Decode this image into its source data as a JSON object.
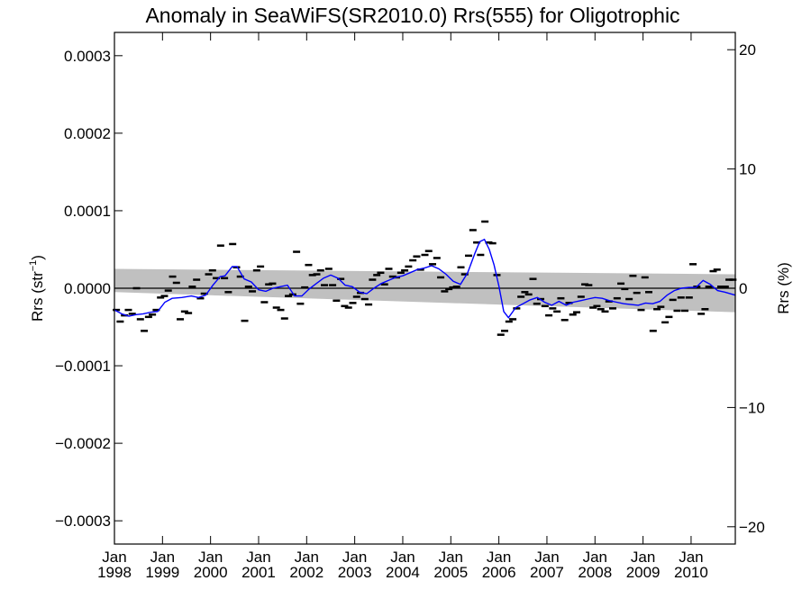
{
  "chart_data": {
    "type": "scatter",
    "title": "Anomaly in SeaWiFS(SR2010.0) Rrs(555) for Oligotrophic",
    "ylabel_base": "Rrs (str",
    "ylabel_sup": "−1",
    "ylabel_end": ")",
    "ylabel_right": "Rrs (%)",
    "xlim": [
      1998.0,
      2010.92
    ],
    "ylim": [
      -0.00033,
      0.00033
    ],
    "ylim_right": [
      -21.45,
      21.45
    ],
    "y_ticks": [
      0.0003,
      0.0002,
      0.0001,
      0.0,
      -0.0001,
      -0.0002,
      -0.0003
    ],
    "y_tick_labels": [
      "0.0003",
      "0.0002",
      "0.0001",
      "0.0000",
      "−0.0001",
      "−0.0002",
      "−0.0003"
    ],
    "y_right_ticks": [
      20,
      10,
      0,
      -10,
      -20
    ],
    "y_right_tick_labels": [
      "20",
      "10",
      "0",
      "−10",
      "−20"
    ],
    "x_ticks": [
      {
        "x": 1998,
        "month": "Jan",
        "year": "1998"
      },
      {
        "x": 1999,
        "month": "Jan",
        "year": "1999"
      },
      {
        "x": 2000,
        "month": "Jan",
        "year": "2000"
      },
      {
        "x": 2001,
        "month": "Jan",
        "year": "2001"
      },
      {
        "x": 2002,
        "month": "Jan",
        "year": "2002"
      },
      {
        "x": 2003,
        "month": "Jan",
        "year": "2003"
      },
      {
        "x": 2004,
        "month": "Jan",
        "year": "2004"
      },
      {
        "x": 2005,
        "month": "Jan",
        "year": "2005"
      },
      {
        "x": 2006,
        "month": "Jan",
        "year": "2006"
      },
      {
        "x": 2007,
        "month": "Jan",
        "year": "2007"
      },
      {
        "x": 2008,
        "month": "Jan",
        "year": "2008"
      },
      {
        "x": 2009,
        "month": "Jan",
        "year": "2009"
      },
      {
        "x": 2010,
        "month": "Jan",
        "year": "2010"
      }
    ],
    "zero_line": 0.0,
    "confidence_band": {
      "x": [
        1998.0,
        2010.92
      ],
      "upper": [
        2.5e-05,
        1.8e-05
      ],
      "lower": [
        -5e-06,
        -3.1e-05
      ],
      "color": "#c0c0c0"
    },
    "monthly_points": {
      "color": "#000000",
      "x": [
        1998.04,
        1998.12,
        1998.21,
        1998.29,
        1998.37,
        1998.46,
        1998.54,
        1998.62,
        1998.71,
        1998.79,
        1998.87,
        1998.96,
        1999.04,
        1999.12,
        1999.21,
        1999.29,
        1999.37,
        1999.46,
        1999.54,
        1999.62,
        1999.71,
        1999.79,
        1999.87,
        1999.96,
        2000.04,
        2000.12,
        2000.21,
        2000.29,
        2000.37,
        2000.46,
        2000.54,
        2000.62,
        2000.71,
        2000.79,
        2000.87,
        2000.96,
        2001.04,
        2001.12,
        2001.21,
        2001.29,
        2001.37,
        2001.46,
        2001.54,
        2001.62,
        2001.71,
        2001.79,
        2001.87,
        2001.96,
        2002.04,
        2002.12,
        2002.21,
        2002.29,
        2002.37,
        2002.46,
        2002.54,
        2002.62,
        2002.71,
        2002.79,
        2002.87,
        2002.96,
        2003.04,
        2003.12,
        2003.21,
        2003.29,
        2003.37,
        2003.46,
        2003.54,
        2003.62,
        2003.71,
        2003.79,
        2003.87,
        2003.96,
        2004.04,
        2004.12,
        2004.21,
        2004.29,
        2004.37,
        2004.46,
        2004.54,
        2004.62,
        2004.71,
        2004.79,
        2004.87,
        2004.96,
        2005.04,
        2005.12,
        2005.21,
        2005.29,
        2005.37,
        2005.46,
        2005.54,
        2005.62,
        2005.71,
        2005.79,
        2005.87,
        2005.96,
        2006.04,
        2006.12,
        2006.21,
        2006.29,
        2006.37,
        2006.46,
        2006.54,
        2006.62,
        2006.71,
        2006.79,
        2006.87,
        2006.96,
        2007.04,
        2007.12,
        2007.21,
        2007.29,
        2007.37,
        2007.46,
        2007.54,
        2007.62,
        2007.71,
        2007.79,
        2007.87,
        2007.96,
        2008.04,
        2008.12,
        2008.21,
        2008.29,
        2008.37,
        2008.46,
        2008.54,
        2008.62,
        2008.71,
        2008.79,
        2008.87,
        2008.96,
        2009.04,
        2009.12,
        2009.21,
        2009.29,
        2009.37,
        2009.46,
        2009.54,
        2009.62,
        2009.71,
        2009.79,
        2009.87,
        2009.96,
        2010.04,
        2010.12,
        2010.21,
        2010.29,
        2010.37,
        2010.46,
        2010.54,
        2010.62,
        2010.71,
        2010.79,
        2010.87
      ],
      "y": [
        -2.8e-05,
        -4.3e-05,
        -3.5e-05,
        -2.8e-05,
        -3.3e-05,
        0.0,
        -4e-05,
        -5.5e-05,
        -3.7e-05,
        -3.4e-05,
        -2.8e-05,
        -1.2e-05,
        -1e-05,
        -3e-06,
        1.5e-05,
        7e-06,
        -4e-05,
        -3e-05,
        -3.2e-05,
        2e-06,
        1.1e-05,
        -1.3e-05,
        -7e-06,
        1.8e-05,
        2.3e-05,
        1.3e-05,
        5.5e-05,
        1.3e-05,
        -5e-06,
        5.7e-05,
        2.7e-05,
        1.5e-05,
        -4.2e-05,
        2e-06,
        -4e-06,
        2.3e-05,
        2.8e-05,
        -1.8e-05,
        5e-06,
        6e-06,
        -2.5e-05,
        -2.8e-05,
        -3.9e-05,
        -1e-05,
        -8e-06,
        4.7e-05,
        -2e-05,
        1e-06,
        3e-05,
        1.7e-05,
        1.8e-05,
        2.3e-05,
        4e-06,
        2.5e-05,
        4e-06,
        -1.6e-05,
        1.2e-05,
        -2.3e-05,
        -2.5e-05,
        -1.9e-05,
        -1.1e-05,
        -6e-06,
        -1.4e-05,
        -2.1e-05,
        1.1e-05,
        1.7e-05,
        2e-05,
        5e-06,
        2.5e-05,
        1.5e-05,
        1.4e-05,
        2e-05,
        2.3e-05,
        2.8e-05,
        3.6e-05,
        4.1e-05,
        2.4e-05,
        4.3e-05,
        4.8e-05,
        3.1e-05,
        3.9e-05,
        1.4e-05,
        -4e-06,
        -1e-06,
        1e-06,
        2e-06,
        2.7e-05,
        1.8e-05,
        4.2e-05,
        7.5e-05,
        5.9e-05,
        4.3e-05,
        8.6e-05,
        5.9e-05,
        5.8e-05,
        1.7e-05,
        -6e-05,
        -5.5e-05,
        -4.3e-05,
        -4e-05,
        -2.6e-05,
        -1.1e-05,
        -5e-06,
        -8e-06,
        1.2e-05,
        -2e-05,
        -1.4e-05,
        -2.3e-05,
        -3.5e-05,
        -2.6e-05,
        -3e-05,
        -1.3e-05,
        -4.1e-05,
        -1.9e-05,
        -3.4e-05,
        -3.1e-05,
        -1.1e-05,
        5e-06,
        4e-06,
        -2.5e-05,
        -2.3e-05,
        -2.7e-05,
        -3e-05,
        -1.7e-05,
        -2.6e-05,
        -1.3e-05,
        6e-06,
        -1e-06,
        -1.4e-05,
        1.6e-05,
        -6e-06,
        -2.8e-05,
        1.4e-05,
        -5e-06,
        -5.5e-05,
        -2.7e-05,
        -2.4e-05,
        -4.4e-05,
        -3.7e-05,
        -1.5e-05,
        -2.9e-05,
        -1.2e-05,
        -2.9e-05,
        -1.2e-05,
        3.1e-05,
        2e-06,
        -3.3e-05,
        -2.7e-05,
        2e-06,
        2.2e-05,
        2.4e-05,
        2e-06,
        2e-06,
        1.1e-05,
        1.1e-05
      ]
    },
    "smoothed_series": {
      "color": "#0000ff",
      "x": [
        1998.0,
        1998.15,
        1998.3,
        1998.45,
        1998.6,
        1998.75,
        1998.9,
        1999.05,
        1999.2,
        1999.4,
        1999.6,
        1999.75,
        1999.9,
        2000.05,
        2000.2,
        2000.3,
        2000.45,
        2000.55,
        2000.7,
        2000.85,
        2001.0,
        2001.15,
        2001.3,
        2001.45,
        2001.6,
        2001.75,
        2001.9,
        2002.05,
        2002.2,
        2002.35,
        2002.5,
        2002.65,
        2002.8,
        2002.95,
        2003.1,
        2003.25,
        2003.4,
        2003.55,
        2003.7,
        2003.85,
        2004.0,
        2004.15,
        2004.3,
        2004.45,
        2004.6,
        2004.75,
        2004.9,
        2005.05,
        2005.2,
        2005.35,
        2005.5,
        2005.6,
        2005.7,
        2005.8,
        2005.9,
        2006.0,
        2006.1,
        2006.2,
        2006.35,
        2006.5,
        2006.65,
        2006.8,
        2006.95,
        2007.1,
        2007.25,
        2007.4,
        2007.55,
        2007.7,
        2007.85,
        2008.0,
        2008.15,
        2008.3,
        2008.45,
        2008.6,
        2008.75,
        2008.9,
        2009.05,
        2009.2,
        2009.35,
        2009.5,
        2009.65,
        2009.8,
        2009.95,
        2010.1,
        2010.25,
        2010.4,
        2010.55,
        2010.7,
        2010.92
      ],
      "y": [
        -2.8e-05,
        -3.3e-05,
        -3.6e-05,
        -3.4e-05,
        -3.3e-05,
        -3.1e-05,
        -3e-05,
        -1.8e-05,
        -1.3e-05,
        -1.2e-05,
        -1e-05,
        -1.2e-05,
        -9e-06,
        4e-06,
        1.5e-05,
        1.6e-05,
        2.8e-05,
        2.8e-05,
        1.2e-05,
        8e-06,
        -2e-06,
        -4e-06,
        0.0,
        2e-06,
        4e-06,
        -1e-05,
        -1e-05,
        -1e-06,
        6e-06,
        1.3e-05,
        1.7e-05,
        1.3e-05,
        4e-06,
        2e-06,
        -5e-06,
        -7e-06,
        0.0,
        6e-06,
        1e-05,
        1.4e-05,
        1.6e-05,
        2e-05,
        2.4e-05,
        2.6e-05,
        2.9e-05,
        2.5e-05,
        1.8e-05,
        9e-06,
        5e-06,
        2e-05,
        4.5e-05,
        6e-05,
        6.3e-05,
        5e-05,
        3e-05,
        3e-06,
        -3e-05,
        -3.8e-05,
        -2.5e-05,
        -2e-05,
        -1.5e-05,
        -1.2e-05,
        -1.8e-05,
        -2.2e-05,
        -1.7e-05,
        -2.2e-05,
        -1.8e-05,
        -1.6e-05,
        -1.4e-05,
        -1.2e-05,
        -1.3e-05,
        -1.6e-05,
        -1.8e-05,
        -2e-05,
        -2.1e-05,
        -2.2e-05,
        -1.9e-05,
        -2e-05,
        -1.7e-05,
        -9e-06,
        -3e-06,
        0.0,
        1e-06,
        1e-06,
        1e-05,
        5e-06,
        -3e-06,
        -5e-06,
        -9e-06
      ]
    }
  }
}
